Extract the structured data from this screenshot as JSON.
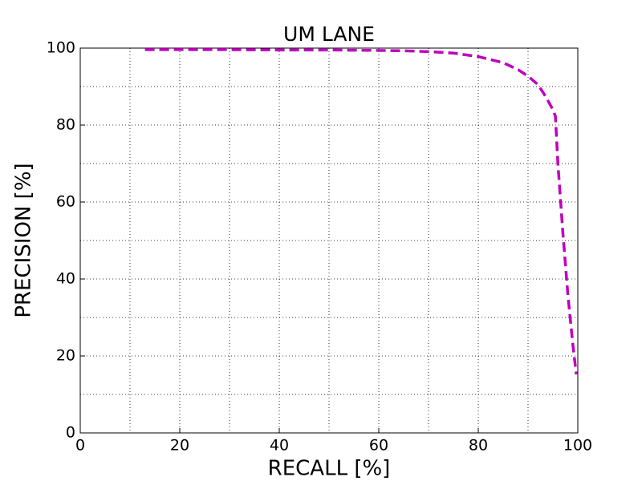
{
  "chart_data": {
    "type": "line",
    "title": "UM LANE",
    "x_label": "RECALL [%]",
    "y_label": "PRECISION [%]",
    "x": [
      13,
      20,
      30,
      40,
      50,
      60,
      65,
      70,
      75,
      80,
      85,
      88,
      90,
      92,
      93.5,
      95,
      95.5,
      96,
      97,
      98,
      99,
      99.7
    ],
    "series": [
      {
        "name": "UM LANE",
        "color": "#bf00bf",
        "values": [
          99.6,
          99.6,
          99.6,
          99.5,
          99.5,
          99.4,
          99.3,
          99.1,
          98.7,
          97.8,
          96.2,
          94.4,
          92.7,
          90.5,
          87.5,
          84,
          82.3,
          70,
          52,
          36,
          23,
          15.2
        ]
      }
    ],
    "xlim": [
      0,
      100
    ],
    "ylim": [
      0,
      100
    ],
    "xticks": [
      0,
      20,
      40,
      60,
      80,
      100
    ],
    "yticks": [
      0,
      20,
      40,
      60,
      80,
      100
    ],
    "x_minor_grid": [
      10,
      30,
      50,
      70,
      90
    ],
    "y_minor_grid": [
      10,
      30,
      50,
      70,
      90
    ],
    "grid": true,
    "line_style": "dashed"
  }
}
